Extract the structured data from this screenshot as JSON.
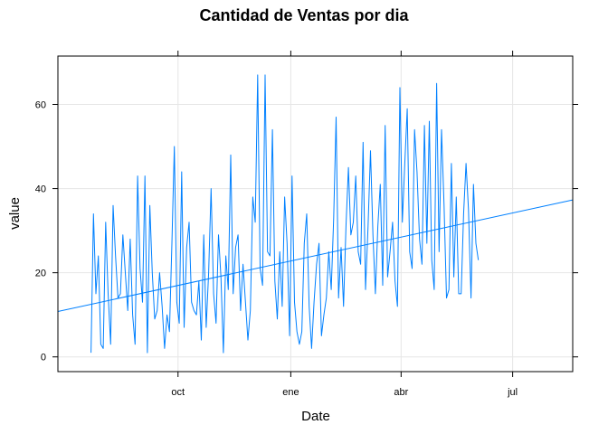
{
  "chart_data": {
    "type": "line",
    "title": "Cantidad de Ventas por dia",
    "xlabel": "Date",
    "ylabel": "value",
    "x_ticks": [
      {
        "label": "oct",
        "date": "2017-10-01"
      },
      {
        "label": "ene",
        "date": "2018-01-01"
      },
      {
        "label": "abr",
        "date": "2018-04-01"
      },
      {
        "label": "jul",
        "date": "2018-07-01"
      }
    ],
    "y_ticks": [
      0,
      20,
      40,
      60
    ],
    "xlim": [
      "2017-06-25",
      "2018-08-19"
    ],
    "ylim": [
      -3.5,
      71.5
    ],
    "grid": true,
    "colors": {
      "line": "#0080ff",
      "trend": "#0080ff",
      "axis": "#000000",
      "grid": "#e6e6e6"
    },
    "series": [
      {
        "start_date": "2017-07-22",
        "values": [
          1,
          34,
          15,
          24,
          3,
          2,
          32,
          15,
          3,
          36,
          24,
          14,
          15,
          29,
          20,
          11,
          28,
          10,
          3,
          43,
          21,
          13,
          43,
          1,
          36,
          20,
          9,
          11,
          20,
          12,
          2,
          10,
          6,
          27,
          50,
          13,
          8,
          44,
          7,
          26,
          32,
          13,
          11,
          10,
          18,
          4,
          29,
          7,
          20,
          40,
          15,
          8,
          29,
          19,
          1,
          24,
          16,
          48,
          15,
          26,
          29,
          11,
          22,
          13,
          4,
          11,
          38,
          32,
          67,
          21,
          17,
          67,
          25,
          24,
          54,
          18,
          9,
          25,
          12,
          38,
          27,
          5,
          43,
          13,
          6,
          3,
          6,
          27,
          34,
          12,
          2,
          13,
          22,
          27,
          5,
          10,
          14,
          25,
          16,
          33,
          57,
          14,
          26,
          12,
          31,
          45,
          29,
          32,
          43,
          25,
          22,
          51,
          16,
          31,
          49,
          29,
          15,
          31,
          41,
          17,
          55,
          19,
          25,
          32,
          18,
          12,
          64,
          32,
          46,
          59,
          25,
          21,
          54,
          44,
          28,
          22,
          55,
          27,
          56,
          23,
          16,
          65,
          25,
          54,
          36,
          14,
          16,
          46,
          19,
          38,
          15,
          15,
          34,
          46,
          35,
          14,
          41,
          27,
          23
        ]
      }
    ],
    "trend": {
      "y_start": 10.8,
      "y_end": 37.3
    }
  }
}
